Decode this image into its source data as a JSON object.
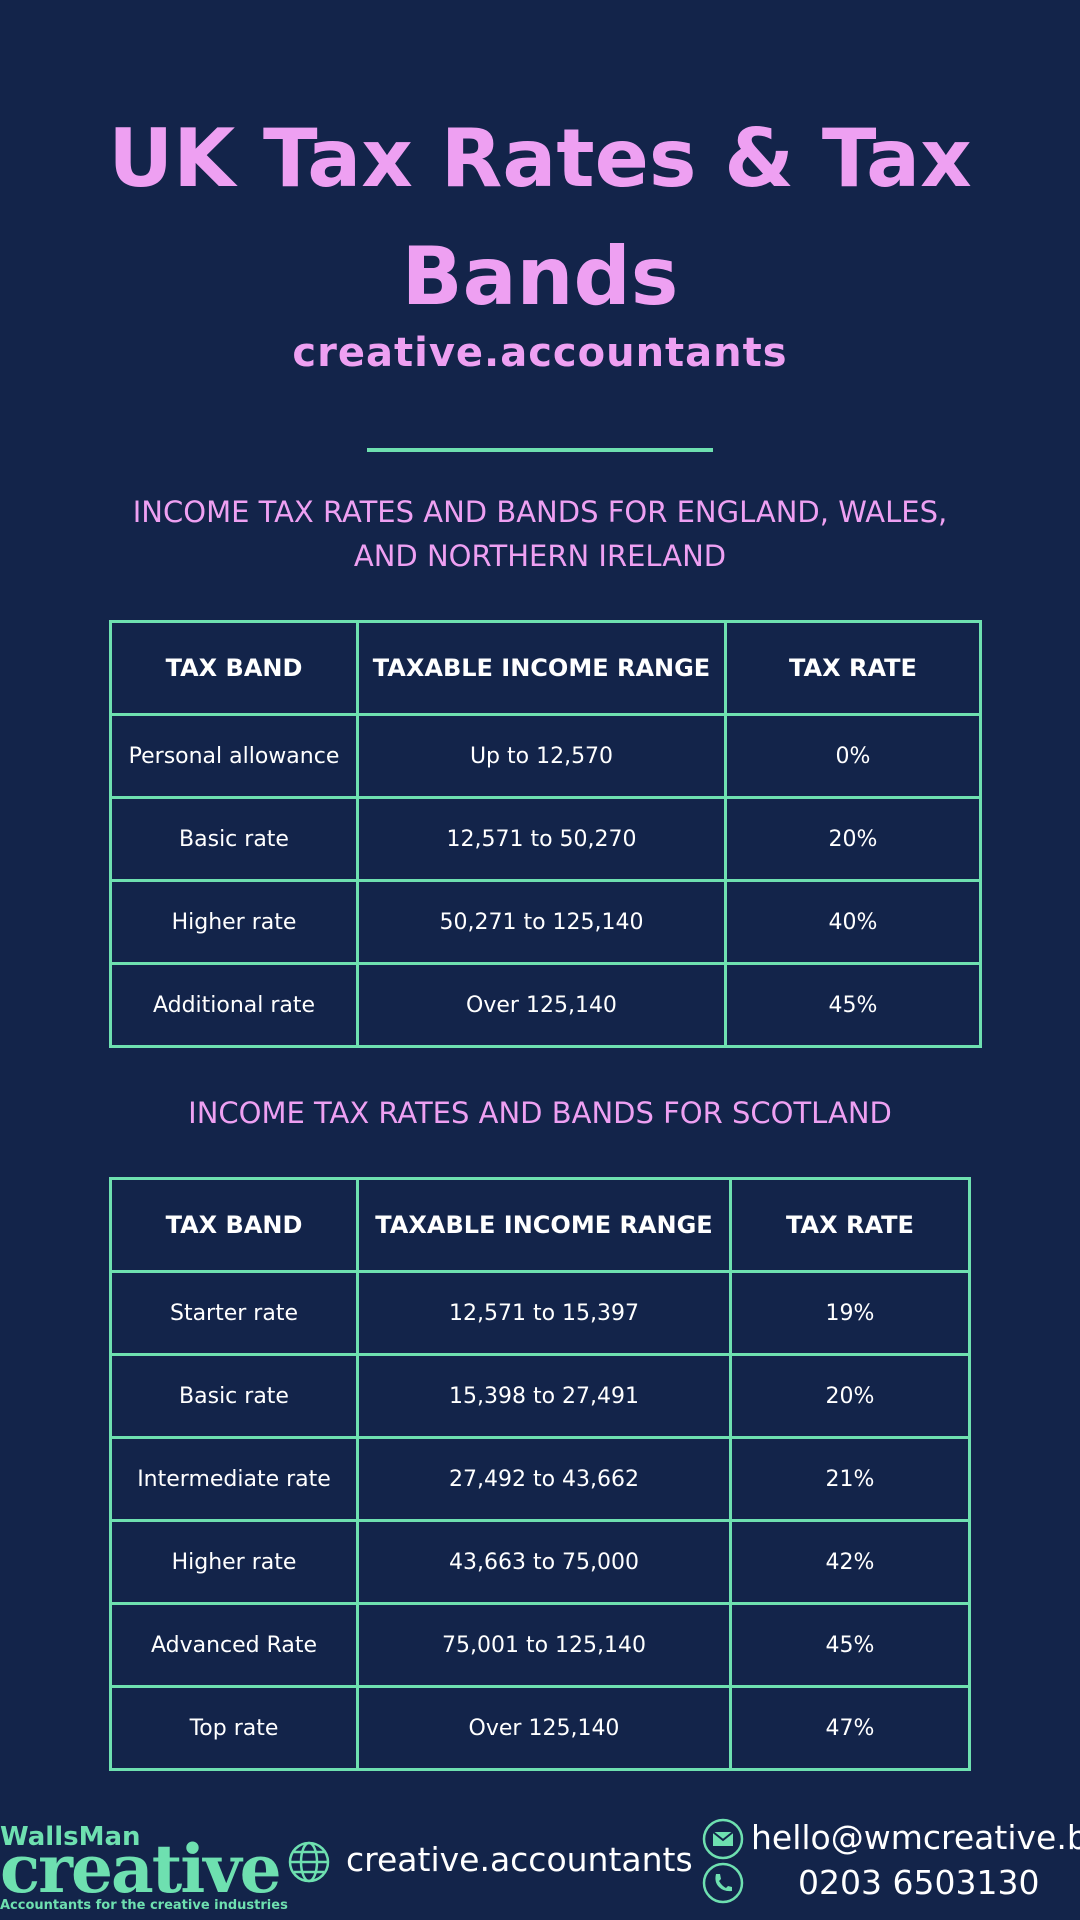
{
  "header": {
    "title": "UK Tax Rates & Tax Bands",
    "subtitle": "creative.accountants"
  },
  "sections": [
    {
      "heading": "INCOME TAX RATES AND BANDS FOR ENGLAND, WALES, AND NORTHERN IRELAND",
      "table": {
        "columns": [
          "TAX BAND",
          "TAXABLE INCOME RANGE",
          "TAX RATE"
        ],
        "rows": [
          [
            "Personal allowance",
            "Up to 12,570",
            "0%"
          ],
          [
            "Basic rate",
            "12,571 to 50,270",
            "20%"
          ],
          [
            "Higher rate",
            "50,271 to 125,140",
            "40%"
          ],
          [
            "Additional rate",
            "Over 125,140",
            "45%"
          ]
        ]
      }
    },
    {
      "heading": "INCOME TAX RATES AND BANDS FOR SCOTLAND",
      "table": {
        "columns": [
          "TAX BAND",
          "TAXABLE INCOME RANGE",
          "TAX RATE"
        ],
        "rows": [
          [
            "Starter rate",
            "12,571 to 15,397",
            "19%"
          ],
          [
            "Basic rate",
            "15,398 to 27,491",
            "20%"
          ],
          [
            "Intermediate rate",
            "27,492 to 43,662",
            "21%"
          ],
          [
            "Higher rate",
            "43,663 to 75,000",
            "42%"
          ],
          [
            "Advanced Rate",
            "75,001 to 125,140",
            "45%"
          ],
          [
            "Top rate",
            "Over 125,140",
            "47%"
          ]
        ]
      }
    }
  ],
  "footer": {
    "logo_top": "WallsMan",
    "logo_main": "creative",
    "logo_tagline": "Accountants for the creative industries",
    "website": "creative.accountants",
    "email": "hello@wmcreative.biz",
    "phone": "0203 6503130"
  }
}
